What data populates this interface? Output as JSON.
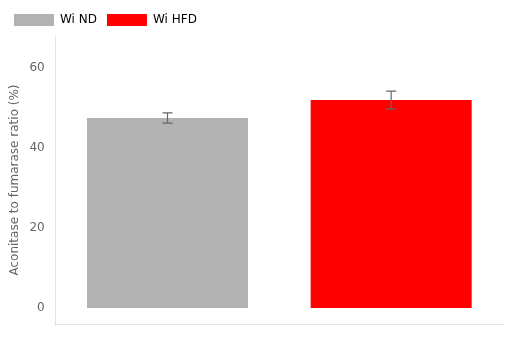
{
  "chart_data": {
    "type": "bar",
    "categories": [
      "Wi ND",
      "Wi HFD"
    ],
    "values": [
      47.5,
      52.0
    ],
    "errors": [
      1.3,
      2.2
    ],
    "colors": [
      "#b2b2b2",
      "#ff0000"
    ],
    "ylabel": "Aconitase to fumarase ratio (%)",
    "ylim": [
      -4,
      68
    ],
    "yticks": [
      0,
      20,
      40,
      60
    ],
    "legend": "upper left",
    "grid": false,
    "tick_labels": "y"
  }
}
